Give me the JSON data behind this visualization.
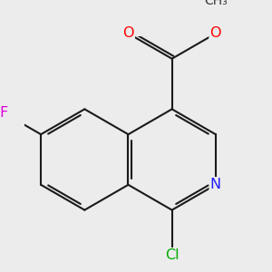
{
  "bg_color": "#ececec",
  "bond_color": "#1a1a1a",
  "bond_width": 1.5,
  "dbo": 0.055,
  "atom_colors": {
    "N": "#2020ff",
    "O": "#ff0000",
    "F": "#e000e0",
    "Cl": "#00aa00"
  },
  "font_size": 11.5,
  "scale": 1.0
}
